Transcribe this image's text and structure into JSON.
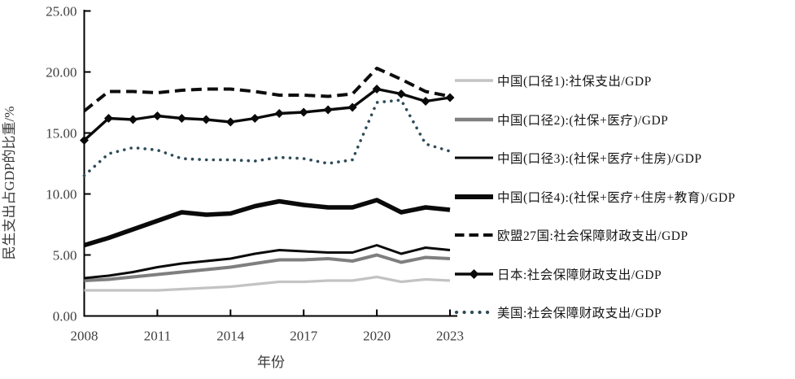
{
  "chart_data": {
    "type": "line",
    "title": "",
    "xlabel": "年份",
    "ylabel": "民生支出占GDP的比重/%",
    "xlim": [
      2008,
      2023
    ],
    "ylim": [
      0,
      25
    ],
    "grid": false,
    "legend_position": "right",
    "x": [
      2008,
      2009,
      2010,
      2011,
      2012,
      2013,
      2014,
      2015,
      2016,
      2017,
      2018,
      2019,
      2020,
      2021,
      2022,
      2023
    ],
    "x_tick_values": [
      2008,
      2011,
      2014,
      2017,
      2020,
      2023
    ],
    "x_tick_labels": [
      "2008",
      "2011",
      "2014",
      "2017",
      "2020",
      "2023"
    ],
    "y_tick_values": [
      0,
      5,
      10,
      15,
      20,
      25
    ],
    "y_tick_labels": [
      "0.00",
      "5.00",
      "10.00",
      "15.00",
      "20.00",
      "25.00"
    ],
    "series": [
      {
        "name": "china-scope1",
        "label": "中国(口径1):社保支出/GDP",
        "color": "#c3c3c3",
        "width": 3.2,
        "style": "solid",
        "marker": null,
        "values": [
          2.1,
          2.1,
          2.1,
          2.1,
          2.2,
          2.3,
          2.4,
          2.6,
          2.8,
          2.8,
          2.9,
          2.9,
          3.2,
          2.8,
          3.0,
          2.9
        ]
      },
      {
        "name": "china-scope2",
        "label": "中国(口径2):(社保+医疗)/GDP",
        "color": "#7f7f7f",
        "width": 4,
        "style": "solid",
        "marker": null,
        "values": [
          2.9,
          3.0,
          3.2,
          3.4,
          3.6,
          3.8,
          4.0,
          4.3,
          4.6,
          4.6,
          4.7,
          4.5,
          5.0,
          4.4,
          4.8,
          4.7
        ]
      },
      {
        "name": "china-scope3",
        "label": "中国(口径3):(社保+医疗+住房)/GDP",
        "color": "#0a0a0a",
        "width": 3,
        "style": "solid",
        "marker": null,
        "values": [
          3.1,
          3.3,
          3.6,
          4.0,
          4.3,
          4.5,
          4.7,
          5.1,
          5.4,
          5.3,
          5.2,
          5.2,
          5.8,
          5.1,
          5.6,
          5.4
        ]
      },
      {
        "name": "china-scope4",
        "label": "中国(口径4):(社保+医疗+住房+教育)/GDP",
        "color": "#0a0a0a",
        "width": 5.5,
        "style": "solid",
        "marker": null,
        "values": [
          5.8,
          6.4,
          7.1,
          7.8,
          8.5,
          8.3,
          8.4,
          9.0,
          9.4,
          9.1,
          8.9,
          8.9,
          9.5,
          8.5,
          8.9,
          8.7
        ]
      },
      {
        "name": "eu27",
        "label": "欧盟27国:社会保障财政支出/GDP",
        "color": "#0d0d0d",
        "width": 4,
        "style": "dashed",
        "marker": null,
        "values": [
          16.8,
          18.4,
          18.4,
          18.3,
          18.5,
          18.6,
          18.6,
          18.4,
          18.1,
          18.1,
          18.0,
          18.2,
          20.3,
          19.4,
          18.4,
          18.0
        ]
      },
      {
        "name": "japan",
        "label": "日本:社会保障财政支出/GDP",
        "color": "#0a0a0a",
        "width": 3.4,
        "style": "solid",
        "marker": "diamond",
        "values": [
          14.4,
          16.2,
          16.1,
          16.4,
          16.2,
          16.1,
          15.9,
          16.2,
          16.6,
          16.7,
          16.9,
          17.1,
          18.6,
          18.2,
          17.6,
          17.9
        ]
      },
      {
        "name": "usa",
        "label": "美国:社会保障财政支出/GDP",
        "color": "#2e4c59",
        "width": 3.6,
        "style": "dotted",
        "marker": null,
        "values": [
          11.5,
          13.3,
          13.8,
          13.6,
          12.9,
          12.8,
          12.8,
          12.7,
          13.0,
          12.9,
          12.5,
          12.8,
          17.5,
          17.7,
          14.1,
          13.5
        ]
      }
    ]
  }
}
